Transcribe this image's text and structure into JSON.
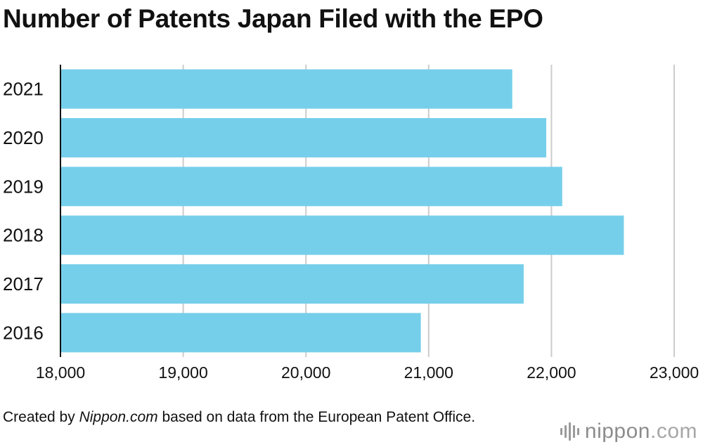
{
  "chart_data": {
    "type": "bar",
    "orientation": "horizontal",
    "title": "Number of Patents Japan Filed with the EPO",
    "categories": [
      "2021",
      "2020",
      "2019",
      "2018",
      "2017",
      "2016"
    ],
    "values": [
      21681,
      21958,
      22088,
      22590,
      21774,
      20936
    ],
    "xlim": [
      18000,
      23000
    ],
    "xticks": [
      18000,
      19000,
      20000,
      21000,
      22000,
      23000
    ],
    "xtick_labels": [
      "18,000",
      "19,000",
      "20,000",
      "21,000",
      "22,000",
      "23,000"
    ],
    "xlabel": "",
    "ylabel": "",
    "grid": "vertical",
    "bar_color": "#76cfea",
    "grid_color": "#cccccc",
    "axis_color": "#111111"
  },
  "footer": {
    "prefix": "Created by ",
    "source_name": "Nippon.com",
    "suffix": " based on data from the European Patent Office."
  },
  "logo": {
    "name": "nippon",
    "suffix": ".com"
  }
}
